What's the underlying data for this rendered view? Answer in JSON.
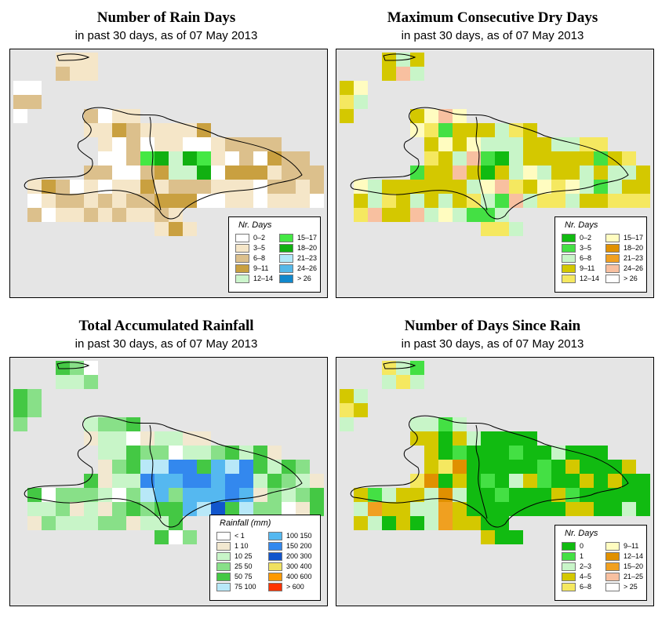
{
  "panels": [
    {
      "title": "Number of Rain Days",
      "subtitle": "in past 30 days, as of  07 May 2013",
      "legend": {
        "title": "Nr. Days",
        "items": [
          {
            "label": "0–2",
            "color": "#ffffff"
          },
          {
            "label": "3–5",
            "color": "#f5e6c8"
          },
          {
            "label": "6–8",
            "color": "#dcc08c"
          },
          {
            "label": "9–11",
            "color": "#c9a040"
          },
          {
            "label": "12–14",
            "color": "#ccf5cc"
          },
          {
            "label": "15–17",
            "color": "#44e844"
          },
          {
            "label": "18–20",
            "color": "#11b011"
          },
          {
            "label": "21–23",
            "color": "#b0e8f8"
          },
          {
            "label": "24–26",
            "color": "#55b8e8"
          },
          {
            "label": "> 26",
            "color": "#1188cc"
          }
        ]
      }
    },
    {
      "title": "Maximum Consecutive Dry Days",
      "subtitle": "in past 30 days, as of  07 May 2013",
      "legend": {
        "title": "Nr. Days",
        "items": [
          {
            "label": "0–2",
            "color": "#11bb11"
          },
          {
            "label": "3–5",
            "color": "#44e044"
          },
          {
            "label": "6–8",
            "color": "#c8f5c8"
          },
          {
            "label": "9–11",
            "color": "#d4c800"
          },
          {
            "label": "12–14",
            "color": "#f5e860"
          },
          {
            "label": "15–17",
            "color": "#fffcc0"
          },
          {
            "label": "18–20",
            "color": "#e09000"
          },
          {
            "label": "21–23",
            "color": "#f0a020"
          },
          {
            "label": "24–26",
            "color": "#f8c0a0"
          },
          {
            "label": "> 26",
            "color": "#ffffff"
          }
        ]
      }
    },
    {
      "title": "Total Accumulated Rainfall",
      "subtitle": "in past 30 days, as of  07 May 2013",
      "legend": {
        "title": "Rainfall (mm)",
        "items": [
          {
            "label": "< 1",
            "color": "#ffffff"
          },
          {
            "label": "1    10",
            "color": "#f2e8d0"
          },
          {
            "label": "10   25",
            "color": "#c8f5c8"
          },
          {
            "label": "25   50",
            "color": "#88e088"
          },
          {
            "label": "50   75",
            "color": "#44c844"
          },
          {
            "label": "75  100",
            "color": "#b8e8f8"
          },
          {
            "label": "100  150",
            "color": "#55b8f0"
          },
          {
            "label": "150  200",
            "color": "#3388ee"
          },
          {
            "label": "200  300",
            "color": "#1155cc"
          },
          {
            "label": "300  400",
            "color": "#f0e060"
          },
          {
            "label": "400  600",
            "color": "#ff9900"
          },
          {
            "label": "> 600",
            "color": "#ff3300"
          }
        ]
      }
    },
    {
      "title": "Number of Days Since Rain",
      "subtitle": "in past 30 days, as of  07 May 2013",
      "legend": {
        "title": "Nr. Days",
        "items": [
          {
            "label": "0",
            "color": "#11bb11"
          },
          {
            "label": "1",
            "color": "#44e044"
          },
          {
            "label": "2–3",
            "color": "#c8f5c8"
          },
          {
            "label": "4–5",
            "color": "#d4c800"
          },
          {
            "label": "6–8",
            "color": "#f5e860"
          },
          {
            "label": "9–11",
            "color": "#fffcc0"
          },
          {
            "label": "12–14",
            "color": "#e09000"
          },
          {
            "label": "15–20",
            "color": "#f0a020"
          },
          {
            "label": "21–25",
            "color": "#f8c0a0"
          },
          {
            "label": "> 25",
            "color": "#ffffff"
          }
        ]
      }
    }
  ]
}
